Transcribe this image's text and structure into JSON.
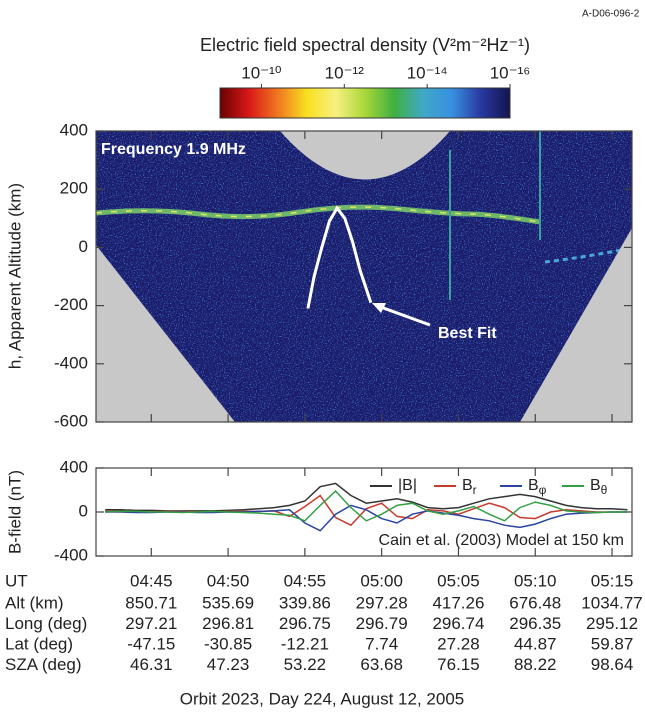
{
  "figure_id": "A-D06-096-2",
  "chart_data": [
    {
      "type": "line",
      "annotation": "Frequency 1.9 MHz",
      "ylabel": "h, Apparent Altitude (km)",
      "xlim": [
        41.4,
        76.3
      ],
      "ylim": [
        -600,
        400
      ],
      "yticks": [
        -600,
        -400,
        -200,
        0,
        200,
        400
      ],
      "x": [
        55.2,
        55.6,
        56.1,
        56.6,
        57.1,
        57.6,
        58.1,
        58.6,
        59.3
      ],
      "series": [
        {
          "name": "Best Fit",
          "color": "#ffffff",
          "values": [
            -210,
            -100,
            0,
            90,
            135,
            100,
            20,
            -80,
            -190
          ]
        }
      ],
      "colorbar": {
        "title": "Electric field spectral density (V²m⁻²Hz⁻¹)",
        "log": true,
        "lim": [
          1e-09,
          1e-16
        ],
        "ticks": [
          {
            "value": 1e-10,
            "label": "10⁻¹⁰"
          },
          {
            "value": 1e-12,
            "label": "10⁻¹²"
          },
          {
            "value": 1e-14,
            "label": "10⁻¹⁴"
          },
          {
            "value": 1e-16,
            "label": "10⁻¹⁶"
          }
        ],
        "colors": [
          "#6b0000",
          "#d81818",
          "#f07820",
          "#f8e020",
          "#f8f080",
          "#a8d838",
          "#40b040",
          "#40a8c8",
          "#3890e0",
          "#2838a0",
          "#141450"
        ]
      }
    },
    {
      "type": "line",
      "ylabel": "B-field (nT)",
      "xlabel": "UT",
      "annotation": "Cain et al. (2003) Model at 150 km",
      "xlim": [
        41.4,
        76.3
      ],
      "xticks": [
        {
          "value": 45,
          "label": "04:45"
        },
        {
          "value": 50,
          "label": "04:50"
        },
        {
          "value": 55,
          "label": "04:55"
        },
        {
          "value": 60,
          "label": "05:00"
        },
        {
          "value": 65,
          "label": "05:05"
        },
        {
          "value": 70,
          "label": "05:10"
        },
        {
          "value": 75,
          "label": "05:15"
        }
      ],
      "ylim": [
        -400,
        400
      ],
      "yticks": [
        -400,
        0,
        400
      ],
      "x": [
        42,
        43,
        44,
        45,
        46,
        47,
        48,
        49,
        50,
        51,
        52,
        53,
        54,
        55,
        56,
        57,
        58,
        59,
        60,
        61,
        62,
        63,
        64,
        65,
        66,
        67,
        68,
        69,
        70,
        71,
        72,
        73,
        74,
        75,
        76
      ],
      "series": [
        {
          "name": "|B|",
          "color": "#333333",
          "values": [
            20,
            20,
            15,
            15,
            10,
            10,
            10,
            10,
            15,
            20,
            30,
            40,
            60,
            100,
            230,
            260,
            150,
            80,
            100,
            120,
            90,
            40,
            30,
            40,
            80,
            120,
            140,
            160,
            140,
            100,
            60,
            40,
            30,
            30,
            20
          ]
        },
        {
          "name": "Br",
          "color": "#c83a2c",
          "values": [
            5,
            5,
            0,
            0,
            5,
            5,
            0,
            0,
            5,
            5,
            5,
            10,
            -40,
            50,
            150,
            -50,
            -120,
            30,
            80,
            -40,
            -60,
            20,
            10,
            -20,
            30,
            80,
            40,
            -50,
            -60,
            0,
            20,
            10,
            0,
            0,
            0
          ]
        },
        {
          "name": "Bφ",
          "color": "#2a44a0",
          "values": [
            0,
            0,
            -5,
            -5,
            0,
            0,
            -5,
            -5,
            0,
            0,
            5,
            10,
            20,
            -100,
            -170,
            -20,
            60,
            20,
            -60,
            -100,
            -20,
            10,
            -10,
            -30,
            -60,
            -80,
            -120,
            -140,
            -110,
            -60,
            -20,
            -10,
            -5,
            0,
            0
          ]
        },
        {
          "name": "Bθ",
          "color": "#34a046",
          "values": [
            0,
            5,
            5,
            0,
            0,
            -5,
            0,
            5,
            0,
            -5,
            -10,
            -20,
            -30,
            -80,
            60,
            190,
            40,
            -80,
            -20,
            60,
            80,
            10,
            -20,
            10,
            50,
            -20,
            -80,
            40,
            90,
            60,
            10,
            0,
            -5,
            0,
            0
          ]
        }
      ]
    }
  ],
  "orbit_table": {
    "rows": [
      {
        "label": "Alt (km)",
        "values": [
          850.71,
          535.69,
          339.86,
          297.28,
          417.26,
          676.48,
          1034.77
        ]
      },
      {
        "label": "Long (deg)",
        "values": [
          297.21,
          296.81,
          296.75,
          296.79,
          296.74,
          296.35,
          295.12
        ]
      },
      {
        "label": "Lat (deg)",
        "values": [
          -47.15,
          -30.85,
          -12.21,
          7.74,
          27.28,
          44.87,
          59.87
        ]
      },
      {
        "label": "SZA (deg)",
        "values": [
          46.31,
          47.23,
          53.22,
          63.68,
          76.15,
          88.22,
          98.64
        ]
      }
    ]
  },
  "caption": "Orbit 2023, Day 224, August 12, 2005"
}
